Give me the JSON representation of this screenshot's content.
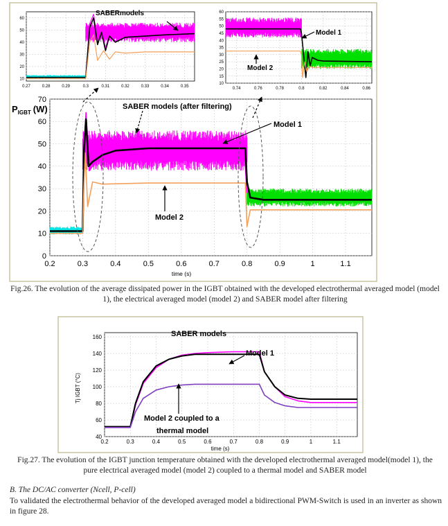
{
  "chart_data": [
    {
      "type": "line",
      "title": "",
      "xlabel": "time (s)",
      "ylabel": "P_IGBT (W)",
      "xlim": [
        0.2,
        1.18
      ],
      "ylim": [
        0,
        70
      ],
      "xticks": [
        "0.2",
        "0.3",
        "0.4",
        "0.5",
        "0.6",
        "0.7",
        "0.8",
        "0.9",
        "1",
        "1.1"
      ],
      "yticks": [
        "0",
        "10",
        "20",
        "30",
        "40",
        "50",
        "60",
        "70"
      ],
      "ylabel_main": "P",
      "ylabel_sub": "IGBT",
      "ylabel_unit": "(W)",
      "annotations": [
        "SABER models (after filtering)",
        "Model 1",
        "Model 2"
      ],
      "series": [
        {
          "name": "SABER models",
          "color": "#ff00ff",
          "x": [
            0.2,
            0.3,
            0.305,
            0.31,
            0.32,
            0.35,
            0.4,
            0.5,
            0.6,
            0.7,
            0.79,
            0.8
          ],
          "y": [
            11,
            11,
            50,
            64,
            38,
            44,
            47,
            48,
            49,
            50,
            51,
            28
          ]
        },
        {
          "name": "Model 1",
          "color": "#000000",
          "x": [
            0.2,
            0.3,
            0.304,
            0.31,
            0.318,
            0.33,
            0.36,
            0.4,
            0.5,
            0.6,
            0.7,
            0.795,
            0.8,
            0.81,
            0.85,
            1.0,
            1.18
          ],
          "y": [
            11,
            11,
            47,
            61,
            40,
            42,
            45,
            47,
            48,
            48,
            48,
            48,
            33,
            26,
            25,
            25,
            25
          ]
        },
        {
          "name": "Model 2",
          "color": "#f5a05a",
          "x": [
            0.2,
            0.3,
            0.303,
            0.308,
            0.315,
            0.33,
            0.36,
            0.5,
            0.7,
            0.795,
            0.8,
            0.81,
            0.82,
            1.0,
            1.18
          ],
          "y": [
            10,
            10,
            29,
            46,
            22,
            33,
            32,
            32.5,
            32.5,
            32.5,
            13,
            20.5,
            20.5,
            20.5,
            20.5
          ]
        }
      ],
      "bands": [
        {
          "color": "#00e5e5",
          "x": [
            0.2,
            0.3
          ],
          "low": 9.5,
          "high": 13
        },
        {
          "color": "#ff00ff",
          "x": [
            0.3,
            0.8
          ],
          "low": 38,
          "high": 56
        },
        {
          "color": "#00e000",
          "x": [
            0.8,
            1.18
          ],
          "low": 22,
          "high": 30
        }
      ]
    },
    {
      "type": "line",
      "title": "",
      "xlabel": "",
      "ylabel": "",
      "xlim": [
        0.27,
        0.355
      ],
      "ylim": [
        8,
        65
      ],
      "xticks": [
        "0.27",
        "0.28",
        "0.29",
        "0.3",
        "0.31",
        "0.32",
        "0.33",
        "0.34",
        "0.35"
      ],
      "yticks": [
        "10",
        "20",
        "30",
        "40",
        "50",
        "60"
      ],
      "annotations": [
        "SABERmodels"
      ],
      "series": [
        {
          "name": "SABER models",
          "color": "#ff00ff",
          "x": [
            0.27,
            0.3,
            0.302,
            0.304,
            0.306,
            0.308,
            0.31,
            0.312,
            0.315,
            0.32,
            0.33,
            0.34,
            0.355
          ],
          "y": [
            11,
            11,
            55,
            63,
            40,
            50,
            35,
            47,
            41,
            45,
            46,
            47,
            48
          ]
        },
        {
          "name": "Model 1",
          "color": "#000000",
          "x": [
            0.27,
            0.3,
            0.302,
            0.304,
            0.306,
            0.308,
            0.31,
            0.312,
            0.315,
            0.32,
            0.33,
            0.34,
            0.355
          ],
          "y": [
            11,
            11,
            52,
            60,
            38,
            48,
            33,
            45,
            40,
            44,
            45,
            46,
            47
          ]
        },
        {
          "name": "Model 2",
          "color": "#f5a05a",
          "x": [
            0.27,
            0.3,
            0.302,
            0.304,
            0.306,
            0.309,
            0.312,
            0.315,
            0.32,
            0.33,
            0.355
          ],
          "y": [
            10,
            10,
            40,
            46,
            25,
            33,
            26,
            32,
            31,
            32,
            32
          ]
        }
      ],
      "bands": [
        {
          "color": "#00e5e5",
          "x": [
            0.27,
            0.3
          ],
          "low": 10,
          "high": 13
        },
        {
          "color": "#ff00ff",
          "x": [
            0.3,
            0.355
          ],
          "low": 40,
          "high": 56
        }
      ]
    },
    {
      "type": "line",
      "title": "",
      "xlabel": "",
      "ylabel": "",
      "xlim": [
        0.73,
        0.865
      ],
      "ylim": [
        10,
        60
      ],
      "xticks": [
        "0.74",
        "0.76",
        "0.78",
        "0.8",
        "0.82",
        "0.84",
        "0.86"
      ],
      "yticks": [
        "10",
        "15",
        "20",
        "25",
        "30",
        "35",
        "40",
        "45",
        "50",
        "55",
        "60"
      ],
      "annotations": [
        "Model 1",
        "Model 2"
      ],
      "series": [
        {
          "name": "Model 1",
          "color": "#000000",
          "x": [
            0.73,
            0.799,
            0.8,
            0.802,
            0.804,
            0.806,
            0.808,
            0.81,
            0.815,
            0.82,
            0.865
          ],
          "y": [
            48,
            48,
            45,
            30,
            14,
            32,
            22,
            28,
            26,
            25.5,
            25
          ]
        },
        {
          "name": "Model 2",
          "color": "#f5a05a",
          "x": [
            0.73,
            0.799,
            0.8,
            0.801,
            0.803,
            0.805,
            0.807,
            0.81,
            0.865
          ],
          "y": [
            32.5,
            32.5,
            30,
            14,
            25,
            18,
            22,
            21,
            21
          ]
        }
      ],
      "bands": [
        {
          "color": "#ff00ff",
          "x": [
            0.73,
            0.8
          ],
          "low": 42,
          "high": 56
        },
        {
          "color": "#00e000",
          "x": [
            0.8,
            0.865
          ],
          "low": 20,
          "high": 34
        }
      ]
    },
    {
      "type": "line",
      "title": "",
      "xlabel": "time (s)",
      "ylabel": "Tj IGBT (°C)",
      "xlim": [
        0.2,
        1.18
      ],
      "ylim": [
        40,
        165
      ],
      "xticks": [
        "0.2",
        "0.3",
        "0.4",
        "0.5",
        "0.6",
        "0.7",
        "0.8",
        "0.9",
        "1",
        "1.1"
      ],
      "yticks": [
        "40",
        "60",
        "80",
        "100",
        "120",
        "140",
        "160"
      ],
      "annotations": [
        "SABER models",
        "Model 1",
        "Model 2 coupled to a",
        "thermal model"
      ],
      "series": [
        {
          "name": "SABER models",
          "color": "#ff00ff",
          "x": [
            0.2,
            0.3,
            0.32,
            0.35,
            0.4,
            0.45,
            0.5,
            0.55,
            0.6,
            0.7,
            0.8,
            0.82,
            0.86,
            0.9,
            0.95,
            1.0,
            1.18
          ],
          "y": [
            51,
            51,
            78,
            104,
            123,
            133,
            138,
            140,
            141,
            142,
            142,
            118,
            100,
            88,
            83,
            81,
            81
          ]
        },
        {
          "name": "Model 1",
          "color": "#000000",
          "x": [
            0.2,
            0.3,
            0.32,
            0.35,
            0.4,
            0.45,
            0.5,
            0.55,
            0.6,
            0.7,
            0.8,
            0.82,
            0.86,
            0.9,
            0.95,
            1.0,
            1.18
          ],
          "y": [
            52,
            52,
            80,
            106,
            125,
            133,
            137,
            139,
            139,
            139,
            139,
            118,
            100,
            90,
            86,
            85,
            85
          ]
        },
        {
          "name": "Model 2",
          "color": "#7f3fbf",
          "x": [
            0.2,
            0.3,
            0.32,
            0.35,
            0.4,
            0.45,
            0.5,
            0.55,
            0.6,
            0.7,
            0.8,
            0.82,
            0.86,
            0.9,
            0.95,
            1.0,
            1.18
          ],
          "y": [
            51,
            51,
            70,
            86,
            96,
            100,
            102,
            103,
            103,
            103,
            103,
            90,
            81,
            77,
            75,
            75,
            75
          ]
        }
      ],
      "bands": []
    }
  ],
  "fig26_caption": "Fig.26. The evolution of the average dissipated power in the IGBT obtained with the developed electrothermal averaged model (model 1), the electrical averaged model (model 2) and SABER model after filtering",
  "fig27_caption": "Fig.27.  The evolution of the IGBT junction temperature  obtained with the developed electrothermal averaged model(model 1), the pure electrical averaged model (model 2) coupled to a thermal model and SABER model",
  "section_heading": "B.    The DC/AC converter (Ncell, P-cell)",
  "paragraph": "To validated the electrothermal behavior of the developed averaged model a bidirectional PWM-Switch is used in an inverter as shown in figure 28.",
  "colors": {
    "frame": "#c8c4a0",
    "axes_bg": "#ffffff",
    "grid": "#c0c0c0"
  }
}
